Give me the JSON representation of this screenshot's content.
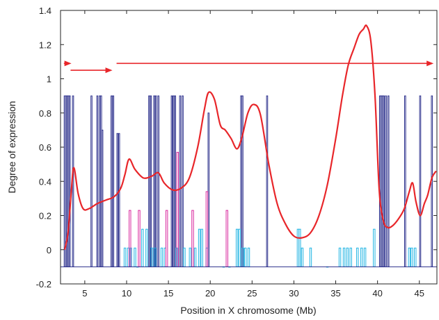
{
  "chart_data": {
    "type": "line",
    "title": "",
    "xlabel": "Position in X chromosome (Mb)",
    "ylabel": "Degree of expression",
    "xlim": [
      2.1,
      47.1
    ],
    "ylim": [
      -0.2,
      1.4
    ],
    "x_ticks": [
      5,
      10,
      15,
      20,
      25,
      30,
      35,
      40,
      45
    ],
    "y_ticks": [
      -0.2,
      0,
      0.2,
      0.4,
      0.6,
      0.8,
      1,
      1.2,
      1.4
    ],
    "x_tick_labels": [
      "5",
      "10",
      "15",
      "20",
      "25",
      "30",
      "35",
      "40",
      "45"
    ],
    "y_tick_labels": [
      "-0.2",
      "0",
      "0.2",
      "0.4",
      "0.6",
      "0.8",
      "1",
      "1.2",
      "1.4"
    ],
    "grid": false,
    "legend": "none",
    "colors": {
      "expression_curve": "#e8262a",
      "arrows": "#e8262a",
      "navy_bars": "#2b2f8c",
      "cyan_bars": "#1fb4e3",
      "magenta_bars": "#d8249c"
    },
    "arrows": [
      {
        "from": 2.5,
        "to": 3.4,
        "y": 1.09
      },
      {
        "from": 3.3,
        "to": 8.3,
        "y": 1.05
      },
      {
        "from": 8.8,
        "to": 46.7,
        "y": 1.09
      }
    ],
    "series": [
      {
        "kind": "smoothed-curve",
        "x": [
          2.6,
          3.0,
          3.4,
          3.7,
          4.2,
          4.8,
          5.5,
          6.5,
          7.5,
          8.5,
          9.3,
          9.8,
          10.3,
          11.0,
          12.0,
          13.0,
          13.8,
          14.5,
          15.5,
          16.5,
          17.5,
          18.5,
          19.3,
          19.8,
          20.5,
          21.2,
          21.8,
          22.5,
          23.2,
          23.8,
          24.5,
          25.2,
          26.0,
          27.0,
          28.0,
          29.0,
          30.0,
          31.0,
          32.0,
          33.0,
          34.0,
          35.0,
          35.8,
          36.5,
          37.2,
          37.8,
          38.3,
          38.7,
          39.2,
          39.7,
          40.2,
          40.7,
          41.2,
          41.8,
          42.5,
          43.2,
          43.8,
          44.2,
          44.6,
          45.1,
          45.6,
          46.0,
          46.5,
          47.0
        ],
        "y": [
          0.0,
          0.1,
          0.35,
          0.48,
          0.33,
          0.24,
          0.24,
          0.27,
          0.29,
          0.31,
          0.36,
          0.44,
          0.53,
          0.47,
          0.42,
          0.43,
          0.45,
          0.39,
          0.35,
          0.36,
          0.42,
          0.6,
          0.82,
          0.92,
          0.88,
          0.73,
          0.7,
          0.65,
          0.59,
          0.66,
          0.8,
          0.85,
          0.79,
          0.5,
          0.27,
          0.15,
          0.08,
          0.07,
          0.1,
          0.2,
          0.38,
          0.65,
          0.9,
          1.08,
          1.18,
          1.26,
          1.29,
          1.31,
          1.22,
          0.9,
          0.35,
          0.17,
          0.13,
          0.14,
          0.18,
          0.24,
          0.34,
          0.39,
          0.28,
          0.2,
          0.27,
          0.32,
          0.42,
          0.46
        ]
      },
      {
        "kind": "bars",
        "color": "navy",
        "baseline": -0.1,
        "bars": [
          {
            "x": 2.6,
            "h": 1.0
          },
          {
            "x": 2.75,
            "h": 1.0
          },
          {
            "x": 2.9,
            "h": 1.0
          },
          {
            "x": 3.05,
            "h": 1.0
          },
          {
            "x": 3.2,
            "h": 1.0
          },
          {
            "x": 3.6,
            "h": 1.0
          },
          {
            "x": 5.8,
            "h": 1.0
          },
          {
            "x": 6.5,
            "h": 1.0
          },
          {
            "x": 6.8,
            "h": 1.0
          },
          {
            "x": 6.95,
            "h": 1.0
          },
          {
            "x": 7.1,
            "h": 0.8
          },
          {
            "x": 8.2,
            "h": 1.0
          },
          {
            "x": 8.4,
            "h": 1.0
          },
          {
            "x": 8.9,
            "h": 0.78
          },
          {
            "x": 9.1,
            "h": 0.78
          },
          {
            "x": 12.7,
            "h": 1.0
          },
          {
            "x": 12.9,
            "h": 1.0
          },
          {
            "x": 13.3,
            "h": 1.0
          },
          {
            "x": 13.5,
            "h": 1.0
          },
          {
            "x": 13.8,
            "h": 1.0
          },
          {
            "x": 15.4,
            "h": 1.0
          },
          {
            "x": 15.6,
            "h": 1.0
          },
          {
            "x": 15.8,
            "h": 1.0
          },
          {
            "x": 16.4,
            "h": 1.0
          },
          {
            "x": 16.7,
            "h": 1.0
          },
          {
            "x": 19.8,
            "h": 0.9
          },
          {
            "x": 23.7,
            "h": 1.0
          },
          {
            "x": 23.85,
            "h": 1.0
          },
          {
            "x": 26.8,
            "h": 1.0
          },
          {
            "x": 40.3,
            "h": 1.0
          },
          {
            "x": 40.45,
            "h": 1.0
          },
          {
            "x": 40.6,
            "h": 1.0
          },
          {
            "x": 40.75,
            "h": 1.0
          },
          {
            "x": 41.0,
            "h": 1.0
          },
          {
            "x": 41.3,
            "h": 1.0
          },
          {
            "x": 43.3,
            "h": 1.0
          },
          {
            "x": 45.1,
            "h": 1.0
          },
          {
            "x": 46.5,
            "h": 1.0
          }
        ]
      },
      {
        "kind": "bars",
        "color": "cyan",
        "baseline": -0.1,
        "bars": [
          {
            "x": 9.8,
            "h": 0.11
          },
          {
            "x": 10.2,
            "h": 0.11
          },
          {
            "x": 10.5,
            "h": 0.11
          },
          {
            "x": 11.0,
            "h": 0.11
          },
          {
            "x": 11.3,
            "h": 0.0
          },
          {
            "x": 11.9,
            "h": 0.22
          },
          {
            "x": 12.4,
            "h": 0.22
          },
          {
            "x": 13.0,
            "h": 0.11
          },
          {
            "x": 13.4,
            "h": 0.11
          },
          {
            "x": 14.2,
            "h": 0.11
          },
          {
            "x": 14.6,
            "h": 0.11
          },
          {
            "x": 16.0,
            "h": 0.11
          },
          {
            "x": 16.9,
            "h": 0.11
          },
          {
            "x": 17.6,
            "h": 0.11
          },
          {
            "x": 18.2,
            "h": 0.11
          },
          {
            "x": 18.7,
            "h": 0.22
          },
          {
            "x": 19.0,
            "h": 0.22
          },
          {
            "x": 19.6,
            "h": 0.11
          },
          {
            "x": 21.6,
            "h": 0.0
          },
          {
            "x": 22.3,
            "h": 0.0
          },
          {
            "x": 23.2,
            "h": 0.22
          },
          {
            "x": 23.5,
            "h": 0.22
          },
          {
            "x": 23.9,
            "h": 0.11
          },
          {
            "x": 24.2,
            "h": 0.11
          },
          {
            "x": 24.6,
            "h": 0.11
          },
          {
            "x": 30.5,
            "h": 0.22
          },
          {
            "x": 30.7,
            "h": 0.22
          },
          {
            "x": 31.0,
            "h": 0.11
          },
          {
            "x": 32.0,
            "h": 0.11
          },
          {
            "x": 34.0,
            "h": 0.0
          },
          {
            "x": 35.5,
            "h": 0.11
          },
          {
            "x": 36.0,
            "h": 0.11
          },
          {
            "x": 36.4,
            "h": 0.11
          },
          {
            "x": 36.8,
            "h": 0.11
          },
          {
            "x": 37.6,
            "h": 0.11
          },
          {
            "x": 38.1,
            "h": 0.11
          },
          {
            "x": 38.5,
            "h": 0.11
          },
          {
            "x": 39.6,
            "h": 0.22
          },
          {
            "x": 43.8,
            "h": 0.11
          },
          {
            "x": 44.1,
            "h": 0.11
          },
          {
            "x": 44.5,
            "h": 0.11
          }
        ]
      },
      {
        "kind": "bars",
        "color": "magenta",
        "baseline": -0.1,
        "bars": [
          {
            "x": 10.4,
            "h": 0.33
          },
          {
            "x": 11.5,
            "h": 0.33
          },
          {
            "x": 14.8,
            "h": 0.33
          },
          {
            "x": 16.1,
            "h": 0.67
          },
          {
            "x": 17.9,
            "h": 0.33
          },
          {
            "x": 19.6,
            "h": 0.44
          },
          {
            "x": 22.0,
            "h": 0.33
          }
        ]
      }
    ]
  }
}
